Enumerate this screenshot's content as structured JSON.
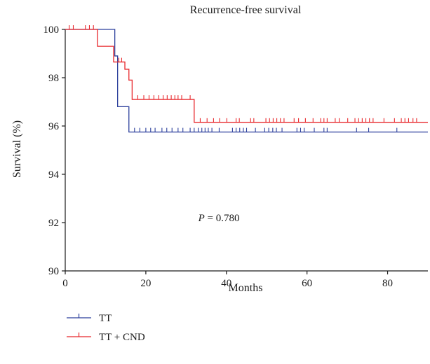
{
  "chart_data": {
    "type": "line",
    "step": true,
    "title": "Recurrence-free survival",
    "xlabel": "Months",
    "ylabel": "Survival (%)",
    "xlim": [
      0,
      90
    ],
    "ylim": [
      90,
      100
    ],
    "xticks": [
      0,
      20,
      40,
      60,
      80
    ],
    "yticks": [
      90,
      92,
      94,
      96,
      98,
      100
    ],
    "grid": false,
    "legend_position": "bottom-left",
    "annotation": {
      "italic": "P",
      "text": " = 0.780",
      "x": 33,
      "y": 92.2
    },
    "series": [
      {
        "name": "TT",
        "color": "#2b3f9c",
        "steps": [
          [
            0,
            100
          ],
          [
            11.5,
            100
          ],
          [
            12.3,
            98.9
          ],
          [
            13,
            96.8
          ],
          [
            15.8,
            95.75
          ],
          [
            90,
            95.75
          ]
        ],
        "censored": [
          [
            17.2,
            95.75
          ],
          [
            18.5,
            95.75
          ],
          [
            20,
            95.75
          ],
          [
            21.2,
            95.75
          ],
          [
            22.3,
            95.75
          ],
          [
            24,
            95.75
          ],
          [
            25.2,
            95.75
          ],
          [
            26.5,
            95.75
          ],
          [
            28,
            95.75
          ],
          [
            29.2,
            95.75
          ],
          [
            31,
            95.75
          ],
          [
            32,
            95.75
          ],
          [
            33,
            95.75
          ],
          [
            33.9,
            95.75
          ],
          [
            34.7,
            95.75
          ],
          [
            35.5,
            95.75
          ],
          [
            36.4,
            95.75
          ],
          [
            38.2,
            95.75
          ],
          [
            41.5,
            95.75
          ],
          [
            42.4,
            95.75
          ],
          [
            43.3,
            95.75
          ],
          [
            44.2,
            95.75
          ],
          [
            45,
            95.75
          ],
          [
            47.2,
            95.75
          ],
          [
            49.5,
            95.75
          ],
          [
            50.5,
            95.75
          ],
          [
            51.5,
            95.75
          ],
          [
            52.4,
            95.75
          ],
          [
            53.8,
            95.75
          ],
          [
            57.5,
            95.75
          ],
          [
            58.4,
            95.75
          ],
          [
            59.3,
            95.75
          ],
          [
            61.8,
            95.75
          ],
          [
            64.2,
            95.75
          ],
          [
            65,
            95.75
          ],
          [
            72.3,
            95.75
          ],
          [
            75.3,
            95.75
          ],
          [
            82.3,
            95.75
          ]
        ]
      },
      {
        "name": "TT + CND",
        "color": "#e8282c",
        "steps": [
          [
            0,
            100
          ],
          [
            8,
            100
          ],
          [
            8,
            99.3
          ],
          [
            12,
            99.3
          ],
          [
            12,
            98.65
          ],
          [
            14.8,
            98.65
          ],
          [
            14.8,
            98.35
          ],
          [
            15.8,
            98.35
          ],
          [
            15.8,
            97.9
          ],
          [
            16.6,
            97.9
          ],
          [
            16.6,
            97.1
          ],
          [
            32,
            97.1
          ],
          [
            32,
            96.15
          ],
          [
            90,
            96.15
          ]
        ],
        "censored": [
          [
            1,
            100
          ],
          [
            2,
            100
          ],
          [
            5,
            100
          ],
          [
            6,
            100
          ],
          [
            7,
            100
          ],
          [
            13.3,
            98.65
          ],
          [
            14,
            98.65
          ],
          [
            18,
            97.1
          ],
          [
            19.5,
            97.1
          ],
          [
            20.8,
            97.1
          ],
          [
            22,
            97.1
          ],
          [
            23.2,
            97.1
          ],
          [
            24.3,
            97.1
          ],
          [
            25.3,
            97.1
          ],
          [
            26.3,
            97.1
          ],
          [
            27.2,
            97.1
          ],
          [
            28,
            97.1
          ],
          [
            28.9,
            97.1
          ],
          [
            31,
            97.1
          ],
          [
            33.5,
            96.15
          ],
          [
            35.2,
            96.15
          ],
          [
            36.8,
            96.15
          ],
          [
            38.3,
            96.15
          ],
          [
            40.1,
            96.15
          ],
          [
            42.4,
            96.15
          ],
          [
            43.2,
            96.15
          ],
          [
            46,
            96.15
          ],
          [
            46.8,
            96.15
          ],
          [
            49.8,
            96.15
          ],
          [
            50.7,
            96.15
          ],
          [
            51.6,
            96.15
          ],
          [
            52.5,
            96.15
          ],
          [
            53.4,
            96.15
          ],
          [
            54.3,
            96.15
          ],
          [
            56.8,
            96.15
          ],
          [
            57.9,
            96.15
          ],
          [
            59.6,
            96.15
          ],
          [
            61.5,
            96.15
          ],
          [
            63.4,
            96.15
          ],
          [
            64.2,
            96.15
          ],
          [
            65,
            96.15
          ],
          [
            67,
            96.15
          ],
          [
            68,
            96.15
          ],
          [
            70.1,
            96.15
          ],
          [
            71.9,
            96.15
          ],
          [
            72.8,
            96.15
          ],
          [
            73.7,
            96.15
          ],
          [
            74.6,
            96.15
          ],
          [
            75.5,
            96.15
          ],
          [
            76.4,
            96.15
          ],
          [
            79.1,
            96.15
          ],
          [
            81.7,
            96.15
          ],
          [
            83.4,
            96.15
          ],
          [
            84.3,
            96.15
          ],
          [
            85.2,
            96.15
          ],
          [
            86.3,
            96.15
          ],
          [
            87.2,
            96.15
          ]
        ]
      }
    ]
  }
}
